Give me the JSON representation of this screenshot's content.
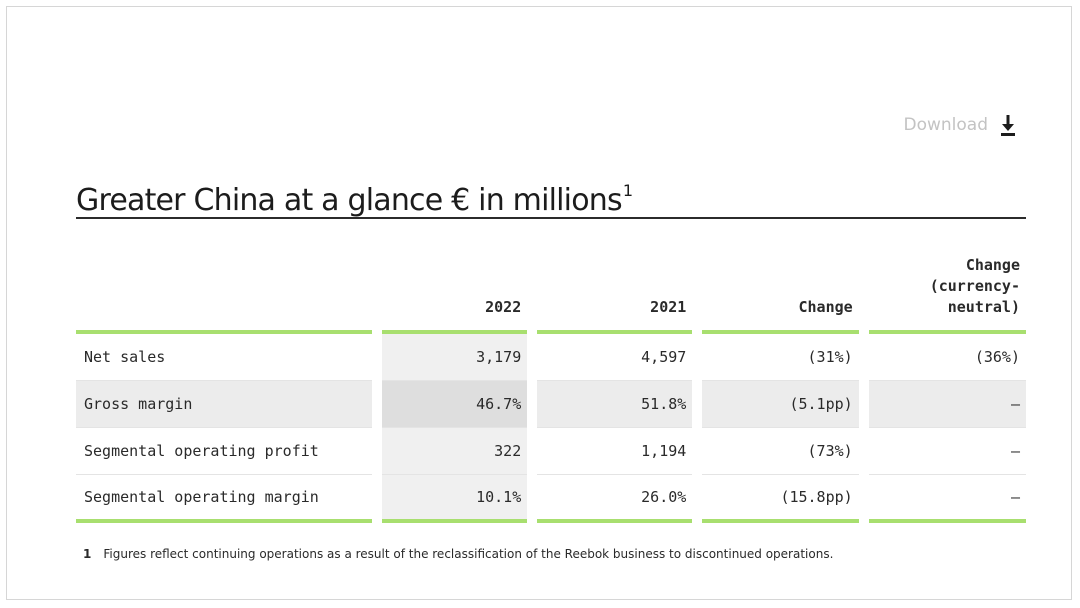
{
  "download": {
    "label": "Download",
    "icon": "download-icon"
  },
  "title": {
    "text": "Greater China at a glance € in millions",
    "footnote_ref": "1"
  },
  "table": {
    "headers": [
      "",
      "2022",
      "2021",
      "Change",
      "Change (currency-neutral)"
    ],
    "header_change_cn_lines": [
      "Change",
      "(currency-",
      "neutral)"
    ],
    "rows": [
      {
        "label": "Net sales",
        "y2022": "3,179",
        "y2021": "4,597",
        "change": "(31%)",
        "change_cn": "(36%)"
      },
      {
        "label": "Gross margin",
        "y2022": "46.7%",
        "y2021": "51.8%",
        "change": "(5.1pp)",
        "change_cn": "–"
      },
      {
        "label": "Segmental operating profit",
        "y2022": "322",
        "y2021": "1,194",
        "change": "(73%)",
        "change_cn": "–"
      },
      {
        "label": "Segmental operating margin",
        "y2022": "10.1%",
        "y2021": "26.0%",
        "change": "(15.8pp)",
        "change_cn": "–"
      }
    ]
  },
  "footnote": {
    "number": "1",
    "text": "Figures reflect continuing operations as a result of the reclassification of the Reebok business to discontinued operations."
  },
  "colors": {
    "accent": "#a8df6f",
    "muted_text": "#c3c3c3",
    "rule": "#2b2b2b"
  }
}
